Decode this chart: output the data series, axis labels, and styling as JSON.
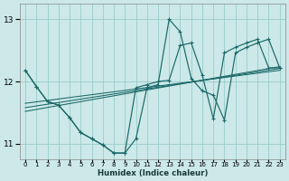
{
  "xlabel": "Humidex (Indice chaleur)",
  "bg_color": "#cce8e8",
  "grid_color": "#99cccc",
  "line_color": "#1a6868",
  "xlim": [
    -0.5,
    23.5
  ],
  "ylim": [
    10.75,
    13.25
  ],
  "yticks": [
    11,
    12,
    13
  ],
  "series1_x": [
    0,
    1,
    2,
    3,
    4,
    5,
    6,
    7,
    8,
    9,
    10,
    11,
    12,
    13,
    14,
    15,
    16,
    17,
    18,
    19,
    20,
    21,
    22,
    23
  ],
  "series1_y": [
    12.18,
    11.92,
    11.68,
    11.62,
    11.42,
    11.18,
    11.08,
    10.98,
    10.85,
    10.85,
    11.08,
    11.9,
    11.95,
    13.0,
    12.8,
    12.05,
    11.85,
    11.78,
    11.38,
    12.46,
    12.55,
    12.62,
    12.68,
    12.22
  ],
  "series2_x": [
    0,
    1,
    2,
    3,
    4,
    5,
    6,
    7,
    8,
    9,
    10,
    11,
    12,
    13,
    14,
    15,
    16,
    17,
    18,
    19,
    20,
    21,
    22,
    23
  ],
  "series2_y": [
    12.18,
    11.92,
    11.68,
    11.62,
    11.42,
    11.18,
    11.08,
    10.98,
    10.85,
    10.85,
    11.9,
    11.95,
    12.0,
    12.02,
    12.58,
    12.62,
    12.1,
    11.4,
    12.46,
    12.55,
    12.62,
    12.68,
    12.22,
    12.22
  ],
  "reg_lines": [
    [
      11.65,
      12.18
    ],
    [
      11.58,
      12.21
    ],
    [
      11.52,
      12.24
    ]
  ]
}
